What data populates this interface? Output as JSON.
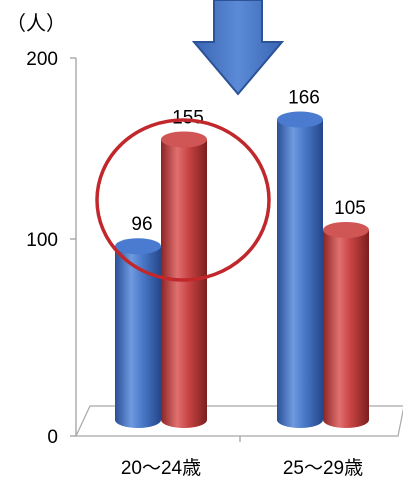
{
  "chart_data": {
    "type": "bar",
    "style": "3d-cylinder",
    "unit": "（人）",
    "categories": [
      "20～24歳",
      "25～29歳"
    ],
    "series": [
      {
        "color": "#3f6fc0",
        "values": [
          96,
          166
        ]
      },
      {
        "color": "#c84040",
        "values": [
          155,
          105
        ]
      }
    ],
    "yticks": [
      0,
      100,
      200
    ],
    "ylim": [
      0,
      200
    ],
    "grid": false,
    "legend": "none",
    "annotations": {
      "arrow": {
        "shape": "down-arrow",
        "color": "#4472c4",
        "target_category": "25～29歳"
      },
      "circle": {
        "shape": "ellipse-outline",
        "color": "#c0282c",
        "target_category": "20～24歳"
      }
    }
  }
}
